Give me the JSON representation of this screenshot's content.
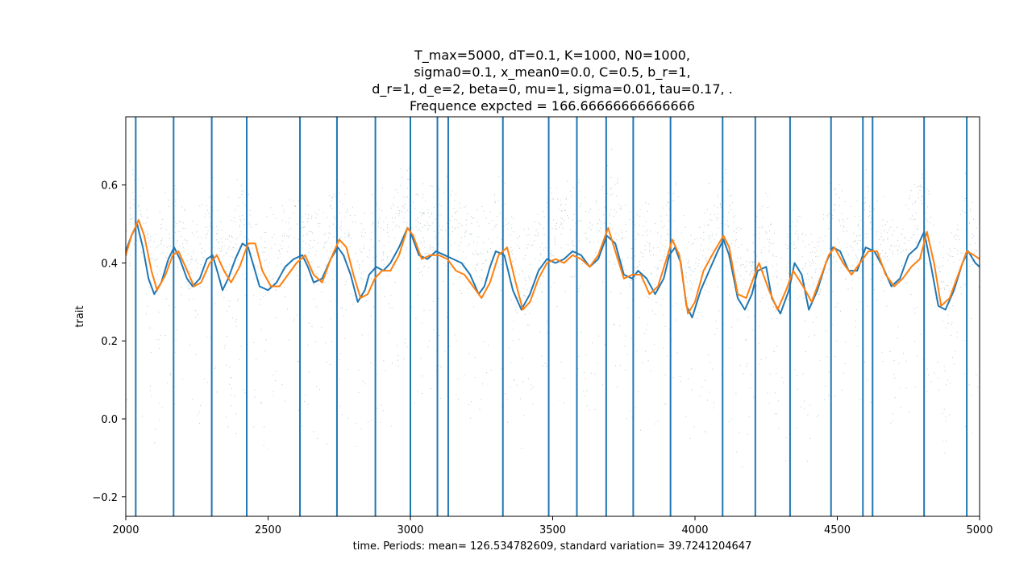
{
  "chart_data": {
    "type": "line",
    "title_lines": [
      "T_max=5000, dT=0.1, K=1000, N0=1000,",
      "sigma0=0.1, x_mean0=0.0, C=0.5, b_r=1,",
      "d_r=1, d_e=2, beta=0, mu=1, sigma=0.01, tau=0.17, .",
      "Frequence expcted = 166.66666666666666"
    ],
    "xlabel": "time. Periods: mean= 126.534782609, standard variation= 39.7241204647",
    "ylabel": "trait",
    "xlim": [
      2000,
      5000
    ],
    "ylim": [
      -0.25,
      0.775
    ],
    "xticks": [
      2000,
      2500,
      3000,
      3500,
      4000,
      4500,
      5000
    ],
    "yticks": [
      -0.2,
      0.0,
      0.2,
      0.4,
      0.6
    ],
    "ytick_labels": [
      "−0.2",
      "0.0",
      "0.2",
      "0.4",
      "0.6"
    ],
    "grid": false,
    "colors": {
      "blue": "#1f77b4",
      "orange": "#ff7f0e",
      "scatter": "#2f5f6a"
    },
    "period_markers_x": [
      2035,
      2168,
      2302,
      2425,
      2612,
      2742,
      2877,
      3000,
      3095,
      3133,
      3325,
      3486,
      3585,
      3688,
      3783,
      3914,
      4097,
      4212,
      4334,
      4478,
      4590,
      4624,
      4805,
      4955
    ],
    "series": [
      {
        "color_key": "blue",
        "x": [
          2000,
          2020,
          2040,
          2060,
          2080,
          2100,
          2125,
          2150,
          2170,
          2190,
          2215,
          2235,
          2260,
          2285,
          2305,
          2325,
          2340,
          2360,
          2385,
          2410,
          2430,
          2450,
          2470,
          2500,
          2530,
          2560,
          2590,
          2620,
          2640,
          2660,
          2690,
          2720,
          2745,
          2765,
          2790,
          2815,
          2840,
          2855,
          2880,
          2905,
          2930,
          2960,
          2990,
          3000,
          3030,
          3060,
          3090,
          3120,
          3150,
          3180,
          3210,
          3240,
          3260,
          3280,
          3300,
          3330,
          3360,
          3390,
          3420,
          3450,
          3480,
          3510,
          3540,
          3570,
          3600,
          3630,
          3660,
          3690,
          3720,
          3750,
          3780,
          3800,
          3830,
          3860,
          3890,
          3910,
          3930,
          3950,
          3970,
          3990,
          4020,
          4050,
          4080,
          4100,
          4120,
          4150,
          4175,
          4200,
          4220,
          4250,
          4270,
          4300,
          4330,
          4350,
          4375,
          4400,
          4430,
          4460,
          4485,
          4510,
          4540,
          4570,
          4600,
          4630,
          4660,
          4690,
          4720,
          4750,
          4780,
          4805,
          4830,
          4855,
          4880,
          4910,
          4940,
          4960,
          4985,
          5000
        ],
        "y": [
          0.43,
          0.47,
          0.5,
          0.44,
          0.36,
          0.32,
          0.35,
          0.41,
          0.44,
          0.41,
          0.36,
          0.34,
          0.36,
          0.41,
          0.42,
          0.37,
          0.33,
          0.36,
          0.41,
          0.45,
          0.44,
          0.39,
          0.34,
          0.33,
          0.35,
          0.39,
          0.41,
          0.42,
          0.39,
          0.35,
          0.36,
          0.41,
          0.44,
          0.42,
          0.37,
          0.3,
          0.33,
          0.37,
          0.39,
          0.38,
          0.4,
          0.44,
          0.49,
          0.48,
          0.42,
          0.41,
          0.43,
          0.42,
          0.41,
          0.4,
          0.37,
          0.32,
          0.34,
          0.39,
          0.43,
          0.42,
          0.33,
          0.28,
          0.32,
          0.38,
          0.41,
          0.4,
          0.41,
          0.43,
          0.42,
          0.39,
          0.41,
          0.47,
          0.45,
          0.37,
          0.36,
          0.38,
          0.36,
          0.32,
          0.36,
          0.42,
          0.44,
          0.4,
          0.29,
          0.26,
          0.33,
          0.38,
          0.43,
          0.46,
          0.42,
          0.31,
          0.28,
          0.32,
          0.38,
          0.39,
          0.31,
          0.27,
          0.33,
          0.4,
          0.37,
          0.28,
          0.33,
          0.4,
          0.44,
          0.43,
          0.38,
          0.38,
          0.44,
          0.43,
          0.39,
          0.34,
          0.36,
          0.42,
          0.44,
          0.48,
          0.39,
          0.29,
          0.28,
          0.33,
          0.4,
          0.43,
          0.4,
          0.39
        ]
      },
      {
        "color_key": "orange",
        "x": [
          2000,
          2020,
          2045,
          2065,
          2090,
          2110,
          2140,
          2165,
          2185,
          2210,
          2240,
          2265,
          2295,
          2320,
          2345,
          2370,
          2400,
          2430,
          2455,
          2480,
          2510,
          2540,
          2570,
          2600,
          2630,
          2660,
          2690,
          2720,
          2750,
          2775,
          2800,
          2825,
          2850,
          2875,
          2900,
          2930,
          2960,
          2990,
          3010,
          3040,
          3070,
          3100,
          3130,
          3160,
          3190,
          3220,
          3250,
          3280,
          3310,
          3340,
          3370,
          3395,
          3420,
          3450,
          3480,
          3510,
          3540,
          3570,
          3600,
          3630,
          3660,
          3695,
          3720,
          3750,
          3780,
          3810,
          3840,
          3870,
          3900,
          3920,
          3945,
          3975,
          4000,
          4030,
          4060,
          4100,
          4120,
          4150,
          4180,
          4200,
          4225,
          4260,
          4290,
          4320,
          4345,
          4380,
          4410,
          4440,
          4470,
          4490,
          4520,
          4550,
          4580,
          4610,
          4640,
          4670,
          4700,
          4730,
          4760,
          4790,
          4815,
          4840,
          4865,
          4895,
          4930,
          4955,
          4980,
          5000
        ],
        "y": [
          0.42,
          0.47,
          0.51,
          0.47,
          0.38,
          0.33,
          0.37,
          0.42,
          0.43,
          0.39,
          0.34,
          0.35,
          0.4,
          0.42,
          0.38,
          0.35,
          0.39,
          0.45,
          0.45,
          0.38,
          0.34,
          0.34,
          0.37,
          0.4,
          0.42,
          0.37,
          0.35,
          0.41,
          0.46,
          0.44,
          0.37,
          0.31,
          0.32,
          0.36,
          0.38,
          0.38,
          0.42,
          0.49,
          0.47,
          0.41,
          0.42,
          0.42,
          0.41,
          0.38,
          0.37,
          0.34,
          0.31,
          0.35,
          0.42,
          0.44,
          0.35,
          0.28,
          0.3,
          0.36,
          0.4,
          0.41,
          0.4,
          0.42,
          0.41,
          0.39,
          0.42,
          0.49,
          0.43,
          0.36,
          0.37,
          0.37,
          0.32,
          0.34,
          0.41,
          0.46,
          0.42,
          0.27,
          0.3,
          0.38,
          0.42,
          0.47,
          0.44,
          0.32,
          0.31,
          0.35,
          0.4,
          0.33,
          0.28,
          0.33,
          0.38,
          0.34,
          0.3,
          0.36,
          0.42,
          0.44,
          0.4,
          0.37,
          0.4,
          0.43,
          0.43,
          0.37,
          0.34,
          0.36,
          0.39,
          0.41,
          0.48,
          0.4,
          0.29,
          0.31,
          0.38,
          0.43,
          0.42,
          0.41
        ]
      }
    ]
  }
}
